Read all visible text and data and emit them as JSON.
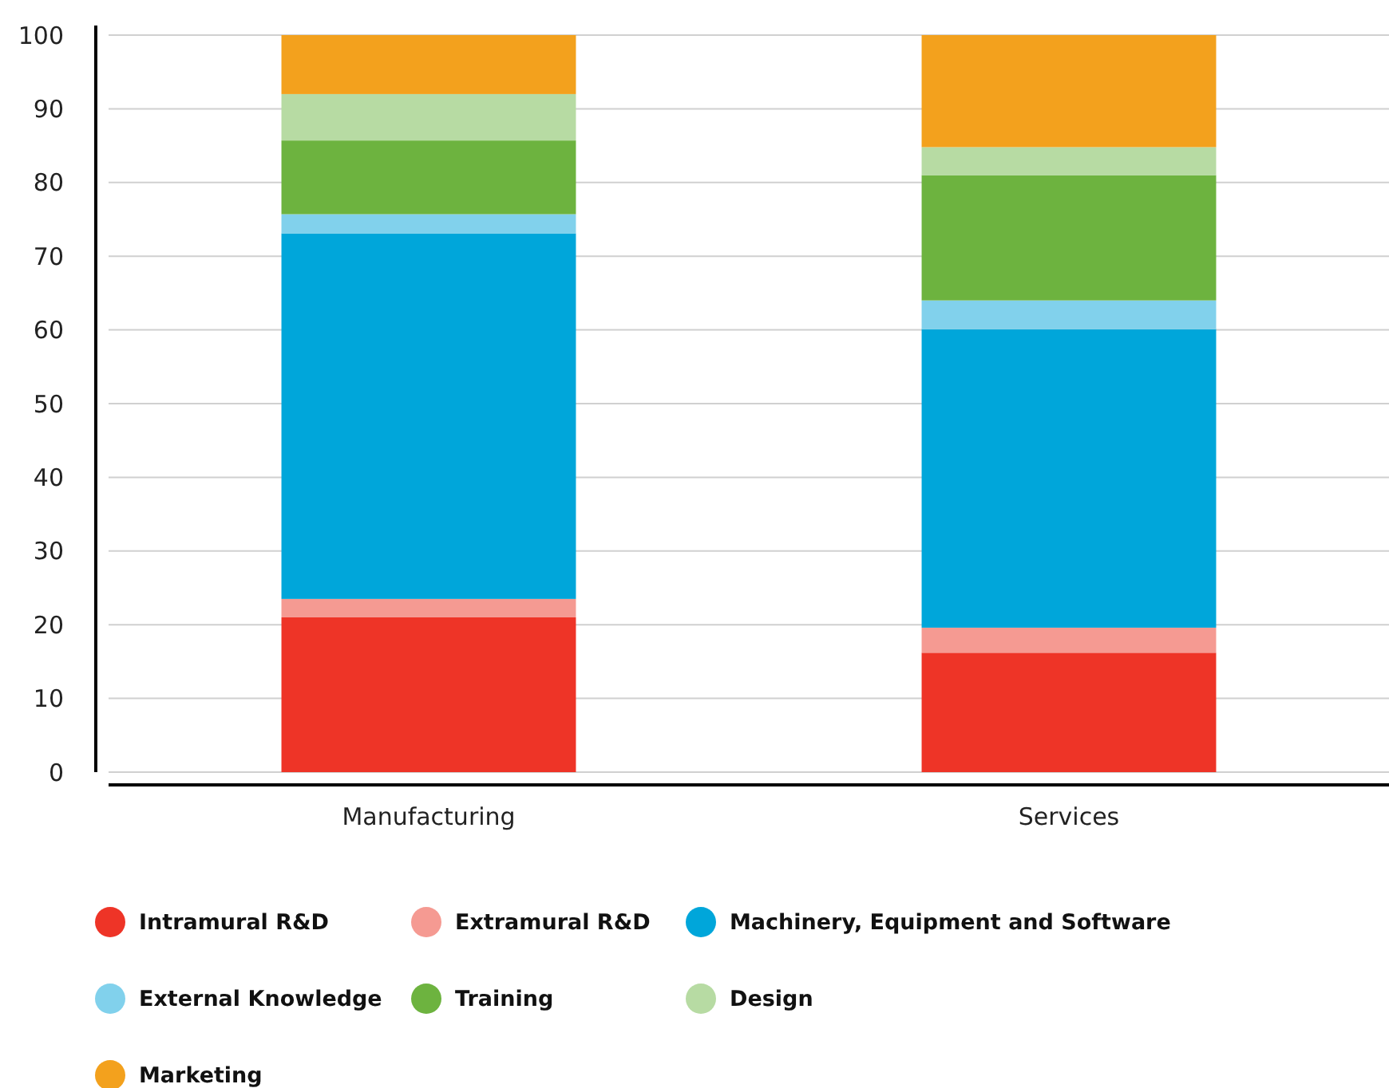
{
  "chart_data": {
    "type": "bar",
    "stacked": true,
    "categories": [
      "Manufacturing",
      "Services"
    ],
    "series": [
      {
        "name": "Intramural R&D",
        "color": "#ee3427",
        "values": [
          21.0,
          16.2
        ]
      },
      {
        "name": "Extramural R&D",
        "color": "#f59a92",
        "values": [
          2.5,
          3.4
        ]
      },
      {
        "name": "Machinery, Equipment and Software",
        "color": "#00a6da",
        "values": [
          49.6,
          40.5
        ]
      },
      {
        "name": "External Knowledge",
        "color": "#81d1ec",
        "values": [
          2.6,
          3.9
        ]
      },
      {
        "name": "Training",
        "color": "#6db33f",
        "values": [
          10.0,
          17.0
        ]
      },
      {
        "name": "Design",
        "color": "#b7dba3",
        "values": [
          6.3,
          3.8
        ]
      },
      {
        "name": "Marketing",
        "color": "#f3a11d",
        "values": [
          8.0,
          15.2
        ]
      }
    ],
    "ylim": [
      0,
      100
    ],
    "yticks": [
      0,
      10,
      20,
      30,
      40,
      50,
      60,
      70,
      80,
      90,
      100
    ],
    "grid": "y",
    "legend": "bottom"
  }
}
